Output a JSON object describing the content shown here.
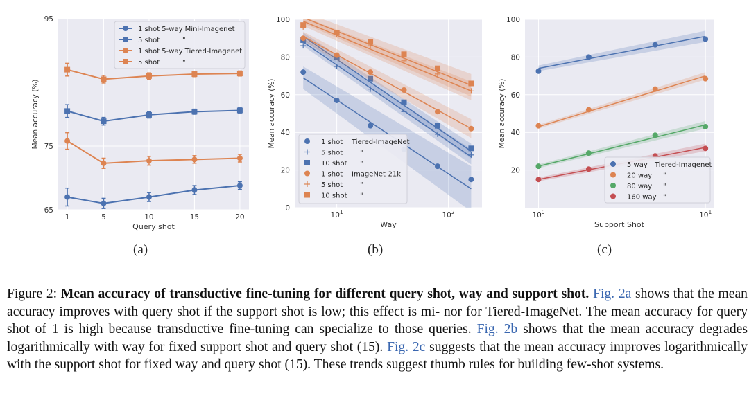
{
  "colors": {
    "blue": "#4c72b0",
    "orange": "#dd8452",
    "green": "#55a868",
    "red": "#c44e52",
    "panel_bg": "#eaeaf2",
    "grid": "#ffffff",
    "ref_link": "#3a67b0"
  },
  "chart_data": [
    {
      "id": "a",
      "type": "line",
      "panel_label": "(a)",
      "xlabel": "Query shot",
      "ylabel": "Mean accuracy (%)",
      "xscale": "linear",
      "xlim": [
        0,
        21
      ],
      "ylim": [
        65,
        95
      ],
      "xticks": [
        1,
        5,
        10,
        15,
        20
      ],
      "xtick_labels": [
        "1",
        "5",
        "10",
        "15",
        "20"
      ],
      "yticks": [
        65,
        75,
        95
      ],
      "ytick_labels": [
        "65",
        "75",
        "95"
      ],
      "grid": true,
      "legend_position": "top-right",
      "x": [
        1,
        5,
        10,
        15,
        20
      ],
      "series": [
        {
          "name": "1 shot 5-way Mini-Imagenet",
          "color": "blue",
          "marker": "circle",
          "values": [
            67.0,
            66.0,
            67.0,
            68.1,
            68.8
          ],
          "errors": [
            1.4,
            0.8,
            0.7,
            0.7,
            0.6
          ]
        },
        {
          "name": "5 shot",
          "ditto": "\"",
          "color": "blue",
          "marker": "square",
          "values": [
            80.5,
            78.9,
            79.9,
            80.4,
            80.6
          ],
          "errors": [
            1.0,
            0.6,
            0.5,
            0.4,
            0.4
          ]
        },
        {
          "name": "1 shot 5-way Tiered-Imagenet",
          "color": "orange",
          "marker": "circle",
          "values": [
            75.8,
            72.3,
            72.7,
            72.9,
            73.1
          ],
          "errors": [
            1.3,
            0.8,
            0.7,
            0.6,
            0.6
          ]
        },
        {
          "name": "5 shot",
          "ditto": "\"",
          "color": "orange",
          "marker": "square",
          "values": [
            87.0,
            85.5,
            86.0,
            86.3,
            86.4
          ],
          "errors": [
            1.0,
            0.6,
            0.5,
            0.4,
            0.4
          ]
        }
      ]
    },
    {
      "id": "b",
      "type": "scatter",
      "panel_label": "(b)",
      "xlabel": "Way",
      "ylabel": "Mean accuracy (%)",
      "xscale": "log",
      "xlim": [
        4.2,
        200
      ],
      "ylim": [
        0,
        100
      ],
      "xticks": [
        10,
        100
      ],
      "xtick_labels": [
        "10^1",
        "10^2"
      ],
      "yticks": [
        0,
        20,
        40,
        60,
        80,
        100
      ],
      "ytick_labels": [
        "0",
        "20",
        "40",
        "60",
        "80",
        "100"
      ],
      "grid": true,
      "legend_position": "bottom-left",
      "series": [
        {
          "name": "1 shot",
          "group": "Tiered-ImageNet",
          "color": "blue",
          "marker": "circle",
          "x": [
            5,
            10,
            20,
            40,
            80,
            160
          ],
          "values": [
            72,
            57,
            43.5,
            31,
            22,
            15
          ],
          "fit": [
            [
              5,
              69
            ],
            [
              160,
              10
            ]
          ],
          "band": 6
        },
        {
          "name": "5 shot",
          "group": "\"",
          "color": "blue",
          "marker": "plus",
          "x": [
            5,
            10,
            20,
            40,
            80,
            160
          ],
          "values": [
            86,
            75,
            63,
            51,
            39,
            28
          ],
          "fit": [
            [
              5,
              88
            ],
            [
              160,
              27
            ]
          ],
          "band": 2
        },
        {
          "name": "10 shot",
          "group": "\"",
          "color": "blue",
          "marker": "square",
          "x": [
            5,
            10,
            20,
            40,
            80,
            160
          ],
          "values": [
            89,
            80,
            68.5,
            56,
            43.5,
            31.5
          ],
          "fit": [
            [
              5,
              91
            ],
            [
              160,
              30
            ]
          ],
          "band": 2
        },
        {
          "name": "1 shot",
          "group": "ImageNet-21k",
          "color": "orange",
          "marker": "circle",
          "x": [
            5,
            10,
            20,
            40,
            80,
            160
          ],
          "values": [
            90,
            81,
            72,
            62.5,
            51,
            42
          ],
          "fit": [
            [
              5,
              91
            ],
            [
              160,
              42
            ]
          ],
          "band": 2.5
        },
        {
          "name": "5 shot",
          "group": "\"",
          "color": "orange",
          "marker": "plus",
          "x": [
            5,
            10,
            20,
            40,
            80,
            160
          ],
          "values": [
            96,
            92,
            86,
            78,
            71,
            62
          ],
          "fit": [
            [
              5,
              99
            ],
            [
              160,
              62
            ]
          ],
          "band": 2.5
        },
        {
          "name": "10 shot",
          "group": "\"",
          "color": "orange",
          "marker": "square",
          "x": [
            5,
            10,
            20,
            40,
            80,
            160
          ],
          "values": [
            97,
            93,
            88,
            81.5,
            74,
            66
          ],
          "fit": [
            [
              5,
              101
            ],
            [
              160,
              65
            ]
          ],
          "band": 3
        }
      ]
    },
    {
      "id": "c",
      "type": "scatter",
      "panel_label": "(c)",
      "xlabel": "Support Shot",
      "ylabel": "Mean accuracy (%)",
      "xscale": "log",
      "xlim": [
        0.83,
        11.2
      ],
      "ylim": [
        0,
        100
      ],
      "xticks": [
        1,
        10
      ],
      "xtick_labels": [
        "10^0",
        "10^1"
      ],
      "yticks": [
        20,
        40,
        60,
        80,
        100
      ],
      "ytick_labels": [
        "20",
        "40",
        "60",
        "80",
        "100"
      ],
      "grid": true,
      "legend_position": "bottom-right",
      "series": [
        {
          "name": "5 way",
          "group": "Tiered-Imagenet",
          "color": "blue",
          "marker": "circle",
          "x": [
            1,
            2,
            5,
            10
          ],
          "values": [
            72.5,
            80,
            86.5,
            89.5
          ],
          "fit": [
            [
              1,
              74
            ],
            [
              10,
              91
            ]
          ],
          "band": 1.5
        },
        {
          "name": "20 way",
          "group": "\"",
          "color": "orange",
          "marker": "circle",
          "x": [
            1,
            2,
            5,
            10
          ],
          "values": [
            43.5,
            52,
            63,
            68.5
          ],
          "fit": [
            [
              1,
              43
            ],
            [
              10,
              70
            ]
          ],
          "band": 1
        },
        {
          "name": "80 way",
          "group": "\"",
          "color": "green",
          "marker": "circle",
          "x": [
            1,
            2,
            5,
            10
          ],
          "values": [
            22,
            29,
            38.5,
            43
          ],
          "fit": [
            [
              1,
              22
            ],
            [
              10,
              44
            ]
          ],
          "band": 1
        },
        {
          "name": "160 way",
          "group": "\"",
          "color": "red",
          "marker": "circle",
          "x": [
            1,
            2,
            5,
            10
          ],
          "values": [
            15,
            20.5,
            27.5,
            31.5
          ],
          "fit": [
            [
              1,
              15
            ],
            [
              10,
              32
            ]
          ],
          "band": 1
        }
      ]
    }
  ],
  "caption": {
    "figure_label": "Figure 2:",
    "title": "Mean accuracy of transductive fine-tuning for different query shot, way and support shot.",
    "ref_a": "Fig. 2a",
    "text_a": "shows that the mean accuracy improves with query shot if the support shot is low; this effect is mi- nor for Tiered-ImageNet. The mean accuracy for query shot of 1 is high because transductive fine-tuning can specialize to those queries.",
    "ref_b": "Fig. 2b",
    "text_b": "shows that the mean accuracy degrades logarithmically with way for fixed support shot and query shot (15).",
    "ref_c": "Fig. 2c",
    "text_c": "suggests that the mean accuracy improves logarithmically with the support shot for fixed way and query shot (15). These trends suggest thumb rules for building few-shot systems."
  }
}
